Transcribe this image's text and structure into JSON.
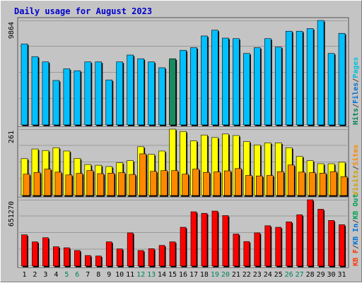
{
  "chart_data": {
    "title": "Daily usage for August 2023",
    "type": "bar",
    "categories": [
      "1",
      "2",
      "3",
      "4",
      "5",
      "6",
      "7",
      "8",
      "9",
      "10",
      "11",
      "12",
      "13",
      "14",
      "15",
      "16",
      "17",
      "18",
      "19",
      "20",
      "21",
      "22",
      "23",
      "24",
      "25",
      "26",
      "27",
      "28",
      "29",
      "30",
      "31"
    ],
    "weekend_days": [
      5,
      6,
      12,
      13,
      19,
      20,
      26,
      27
    ],
    "colors": {
      "title": "#0000cc",
      "hits": "#00c0ff",
      "files": "#0060ff",
      "pages": "#00d0d0",
      "visits": "#ffff00",
      "sites": "#ff8800",
      "kbytes": "#ff0000",
      "weekend_label": "#00805c",
      "kb_in": "#0070d0",
      "kb_out": "#00a050",
      "kb_f": "#ff3300"
    },
    "panels": [
      {
        "id": "hits",
        "max_label": "9864",
        "ymax": 9864,
        "legend": [
          {
            "label": "Hits",
            "color": "#00805c"
          },
          {
            "label": "/",
            "color": "#444444"
          },
          {
            "label": "Files",
            "color": "#0070d0"
          },
          {
            "label": "/",
            "color": "#444444"
          },
          {
            "label": "Pages",
            "color": "#00c0e0"
          }
        ],
        "series": [
          {
            "name": "Hits",
            "color": "#00c0ff",
            "values": [
              7650,
              6450,
              5950,
              4200,
              5300,
              5120,
              5950,
              5950,
              4250,
              5950,
              6600,
              6250,
              5950,
              5400,
              6050,
              7050,
              7300,
              8400,
              8950,
              8200,
              8150,
              6750,
              7300,
              8150,
              7350,
              8850,
              8850,
              9100,
              9864,
              6750,
              8650
            ]
          },
          {
            "name": "Pages",
            "color": "#1a8a60",
            "values": [
              0,
              0,
              0,
              0,
              0,
              0,
              0,
              0,
              0,
              0,
              0,
              0,
              0,
              0,
              6250,
              0,
              0,
              0,
              0,
              0,
              0,
              0,
              0,
              0,
              0,
              0,
              0,
              0,
              0,
              0,
              0
            ]
          }
        ]
      },
      {
        "id": "visits",
        "max_label": "261",
        "ymax": 261,
        "legend": [
          {
            "label": "Visits",
            "color": "#d0a000"
          },
          {
            "label": "/",
            "color": "#444444"
          },
          {
            "label": "Sites",
            "color": "#ff8800"
          }
        ],
        "series": [
          {
            "name": "Visits",
            "color": "#ffff00",
            "values": [
              145,
              183,
              177,
              188,
              175,
              146,
              122,
              119,
              114,
              129,
              137,
              192,
              162,
              175,
              261,
              252,
              215,
              238,
              228,
              242,
              236,
              212,
              199,
              207,
              207,
              188,
              154,
              137,
              125,
              125,
              131
            ]
          },
          {
            "name": "Sites",
            "color": "#ff8800",
            "values": [
              84,
              91,
              104,
              92,
              81,
              87,
              98,
              86,
              88,
              90,
              83,
              164,
              95,
              98,
              98,
              84,
              104,
              91,
              93,
              97,
              106,
              79,
              77,
              79,
              94,
              120,
              92,
              90,
              88,
              94,
              74
            ]
          }
        ]
      },
      {
        "id": "kbytes",
        "max_label": "651270",
        "ymax": 651270,
        "legend": [
          {
            "label": "KB F",
            "color": "#ff3300"
          },
          {
            "label": "/",
            "color": "#444444"
          },
          {
            "label": "KB In",
            "color": "#0070d0"
          },
          {
            "label": "/",
            "color": "#444444"
          },
          {
            "label": "KB Out",
            "color": "#00a050"
          }
        ],
        "series": [
          {
            "name": "KBytes",
            "color": "#ff0000",
            "values": [
              307000,
              238000,
              279000,
              190000,
              180000,
              153000,
              104000,
              99000,
              238000,
              169000,
              326000,
              153000,
              171000,
              203000,
              238000,
              381000,
              533000,
              518000,
              540000,
              496000,
              315000,
              241000,
              326000,
              396000,
              381000,
              434000,
              504000,
              651270,
              558000,
              448000,
              406000
            ]
          }
        ]
      }
    ]
  }
}
